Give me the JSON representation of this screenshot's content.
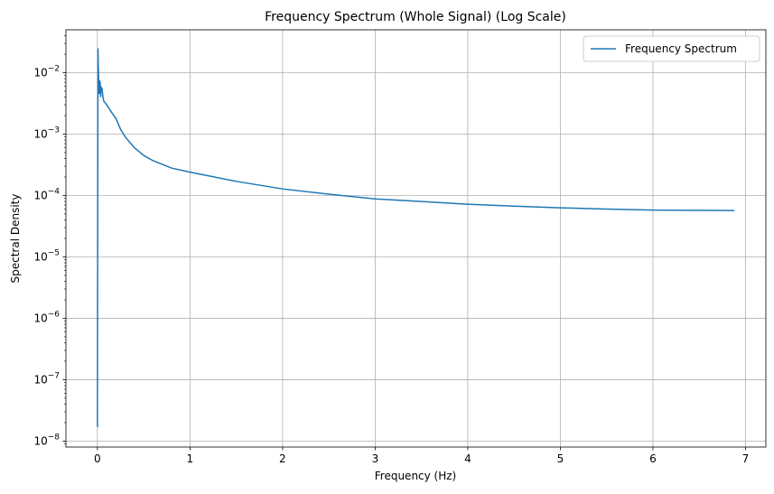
{
  "chart_data": {
    "type": "line",
    "title": "Frequency Spectrum (Whole Signal) (Log Scale)",
    "xlabel": "Frequency (Hz)",
    "ylabel": "Spectral Density",
    "xlim": [
      -0.34,
      7.22
    ],
    "ylim": [
      8e-09,
      0.05
    ],
    "yscale": "log",
    "grid": true,
    "legend_position": "top-right",
    "x_ticks": [
      "0",
      "1",
      "2",
      "3",
      "4",
      "5",
      "6",
      "7"
    ],
    "y_ticks": [
      {
        "value": 1e-08,
        "base": "10",
        "exp": "−8"
      },
      {
        "value": 1e-07,
        "base": "10",
        "exp": "−7"
      },
      {
        "value": 1e-06,
        "base": "10",
        "exp": "−6"
      },
      {
        "value": 1e-05,
        "base": "10",
        "exp": "−5"
      },
      {
        "value": 0.0001,
        "base": "10",
        "exp": "−4"
      },
      {
        "value": 0.001,
        "base": "10",
        "exp": "−3"
      },
      {
        "value": 0.01,
        "base": "10",
        "exp": "−2"
      }
    ],
    "series": [
      {
        "name": "Frequency Spectrum",
        "color": "#1f77b4",
        "x": [
          0.0,
          0.003,
          0.006,
          0.01,
          0.015,
          0.02,
          0.025,
          0.03,
          0.035,
          0.04,
          0.05,
          0.06,
          0.07,
          0.08,
          0.1,
          0.12,
          0.15,
          0.2,
          0.25,
          0.3,
          0.4,
          0.5,
          0.6,
          0.8,
          1.0,
          1.5,
          2.0,
          2.5,
          3.0,
          3.5,
          4.0,
          4.5,
          5.0,
          5.5,
          6.0,
          6.5,
          6.88
        ],
        "y": [
          1.7e-08,
          3e-05,
          0.025,
          0.012,
          0.006,
          0.0045,
          0.0075,
          0.0068,
          0.004,
          0.0058,
          0.0055,
          0.004,
          0.0034,
          0.0033,
          0.003,
          0.0027,
          0.0023,
          0.0018,
          0.0012,
          0.0009,
          0.0006,
          0.00045,
          0.00037,
          0.00028,
          0.00024,
          0.00017,
          0.000128,
          0.000105,
          8.8e-05,
          8e-05,
          7.2e-05,
          6.7e-05,
          6.3e-05,
          6e-05,
          5.8e-05,
          5.73e-05,
          5.68e-05
        ]
      }
    ]
  }
}
